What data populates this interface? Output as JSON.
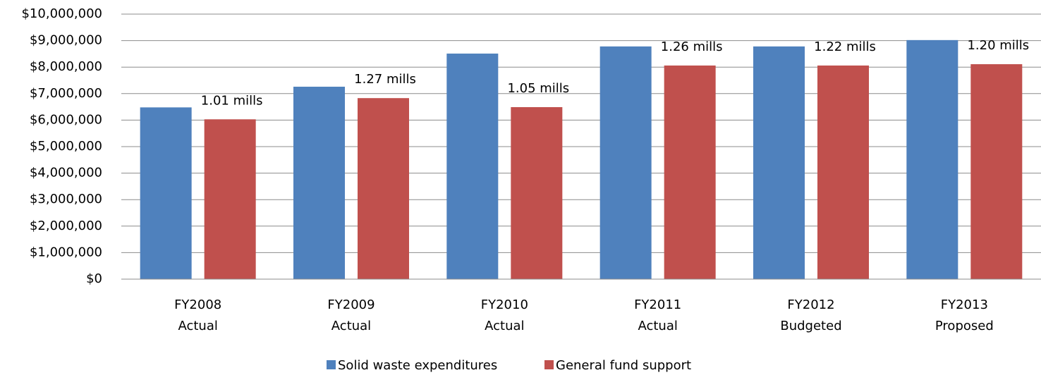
{
  "chart_data": {
    "type": "bar",
    "categories": [
      [
        "FY2008",
        "Actual"
      ],
      [
        "FY2009",
        "Actual"
      ],
      [
        "FY2010",
        "Actual"
      ],
      [
        "FY2011",
        "Actual"
      ],
      [
        "FY2012",
        "Budgeted"
      ],
      [
        "FY2013",
        "Proposed"
      ]
    ],
    "series": [
      {
        "name": "Solid waste expenditures",
        "color": "#4f81bd",
        "values": [
          6480000,
          7260000,
          8510000,
          8780000,
          8780000,
          9020000
        ]
      },
      {
        "name": "General fund support",
        "color": "#c0504d",
        "values": [
          6030000,
          6830000,
          6490000,
          8060000,
          8060000,
          8110000
        ]
      }
    ],
    "annotations": [
      "1.01 mills",
      "1.27 mills",
      "1.05 mills",
      "1.26 mills",
      "1.22 mills",
      "1.20 mills"
    ],
    "ylim": [
      0,
      10000000
    ],
    "yticks": [
      {
        "value": 0,
        "label": "$0"
      },
      {
        "value": 1000000,
        "label": "$1,000,000"
      },
      {
        "value": 2000000,
        "label": "$2,000,000"
      },
      {
        "value": 3000000,
        "label": "$3,000,000"
      },
      {
        "value": 4000000,
        "label": "$4,000,000"
      },
      {
        "value": 5000000,
        "label": "$5,000,000"
      },
      {
        "value": 6000000,
        "label": "$6,000,000"
      },
      {
        "value": 7000000,
        "label": "$7,000,000"
      },
      {
        "value": 8000000,
        "label": "$8,000,000"
      },
      {
        "value": 9000000,
        "label": "$9,000,000"
      },
      {
        "value": 10000000,
        "label": "$10,000,000"
      }
    ],
    "grid": true,
    "legend": "bottom"
  }
}
